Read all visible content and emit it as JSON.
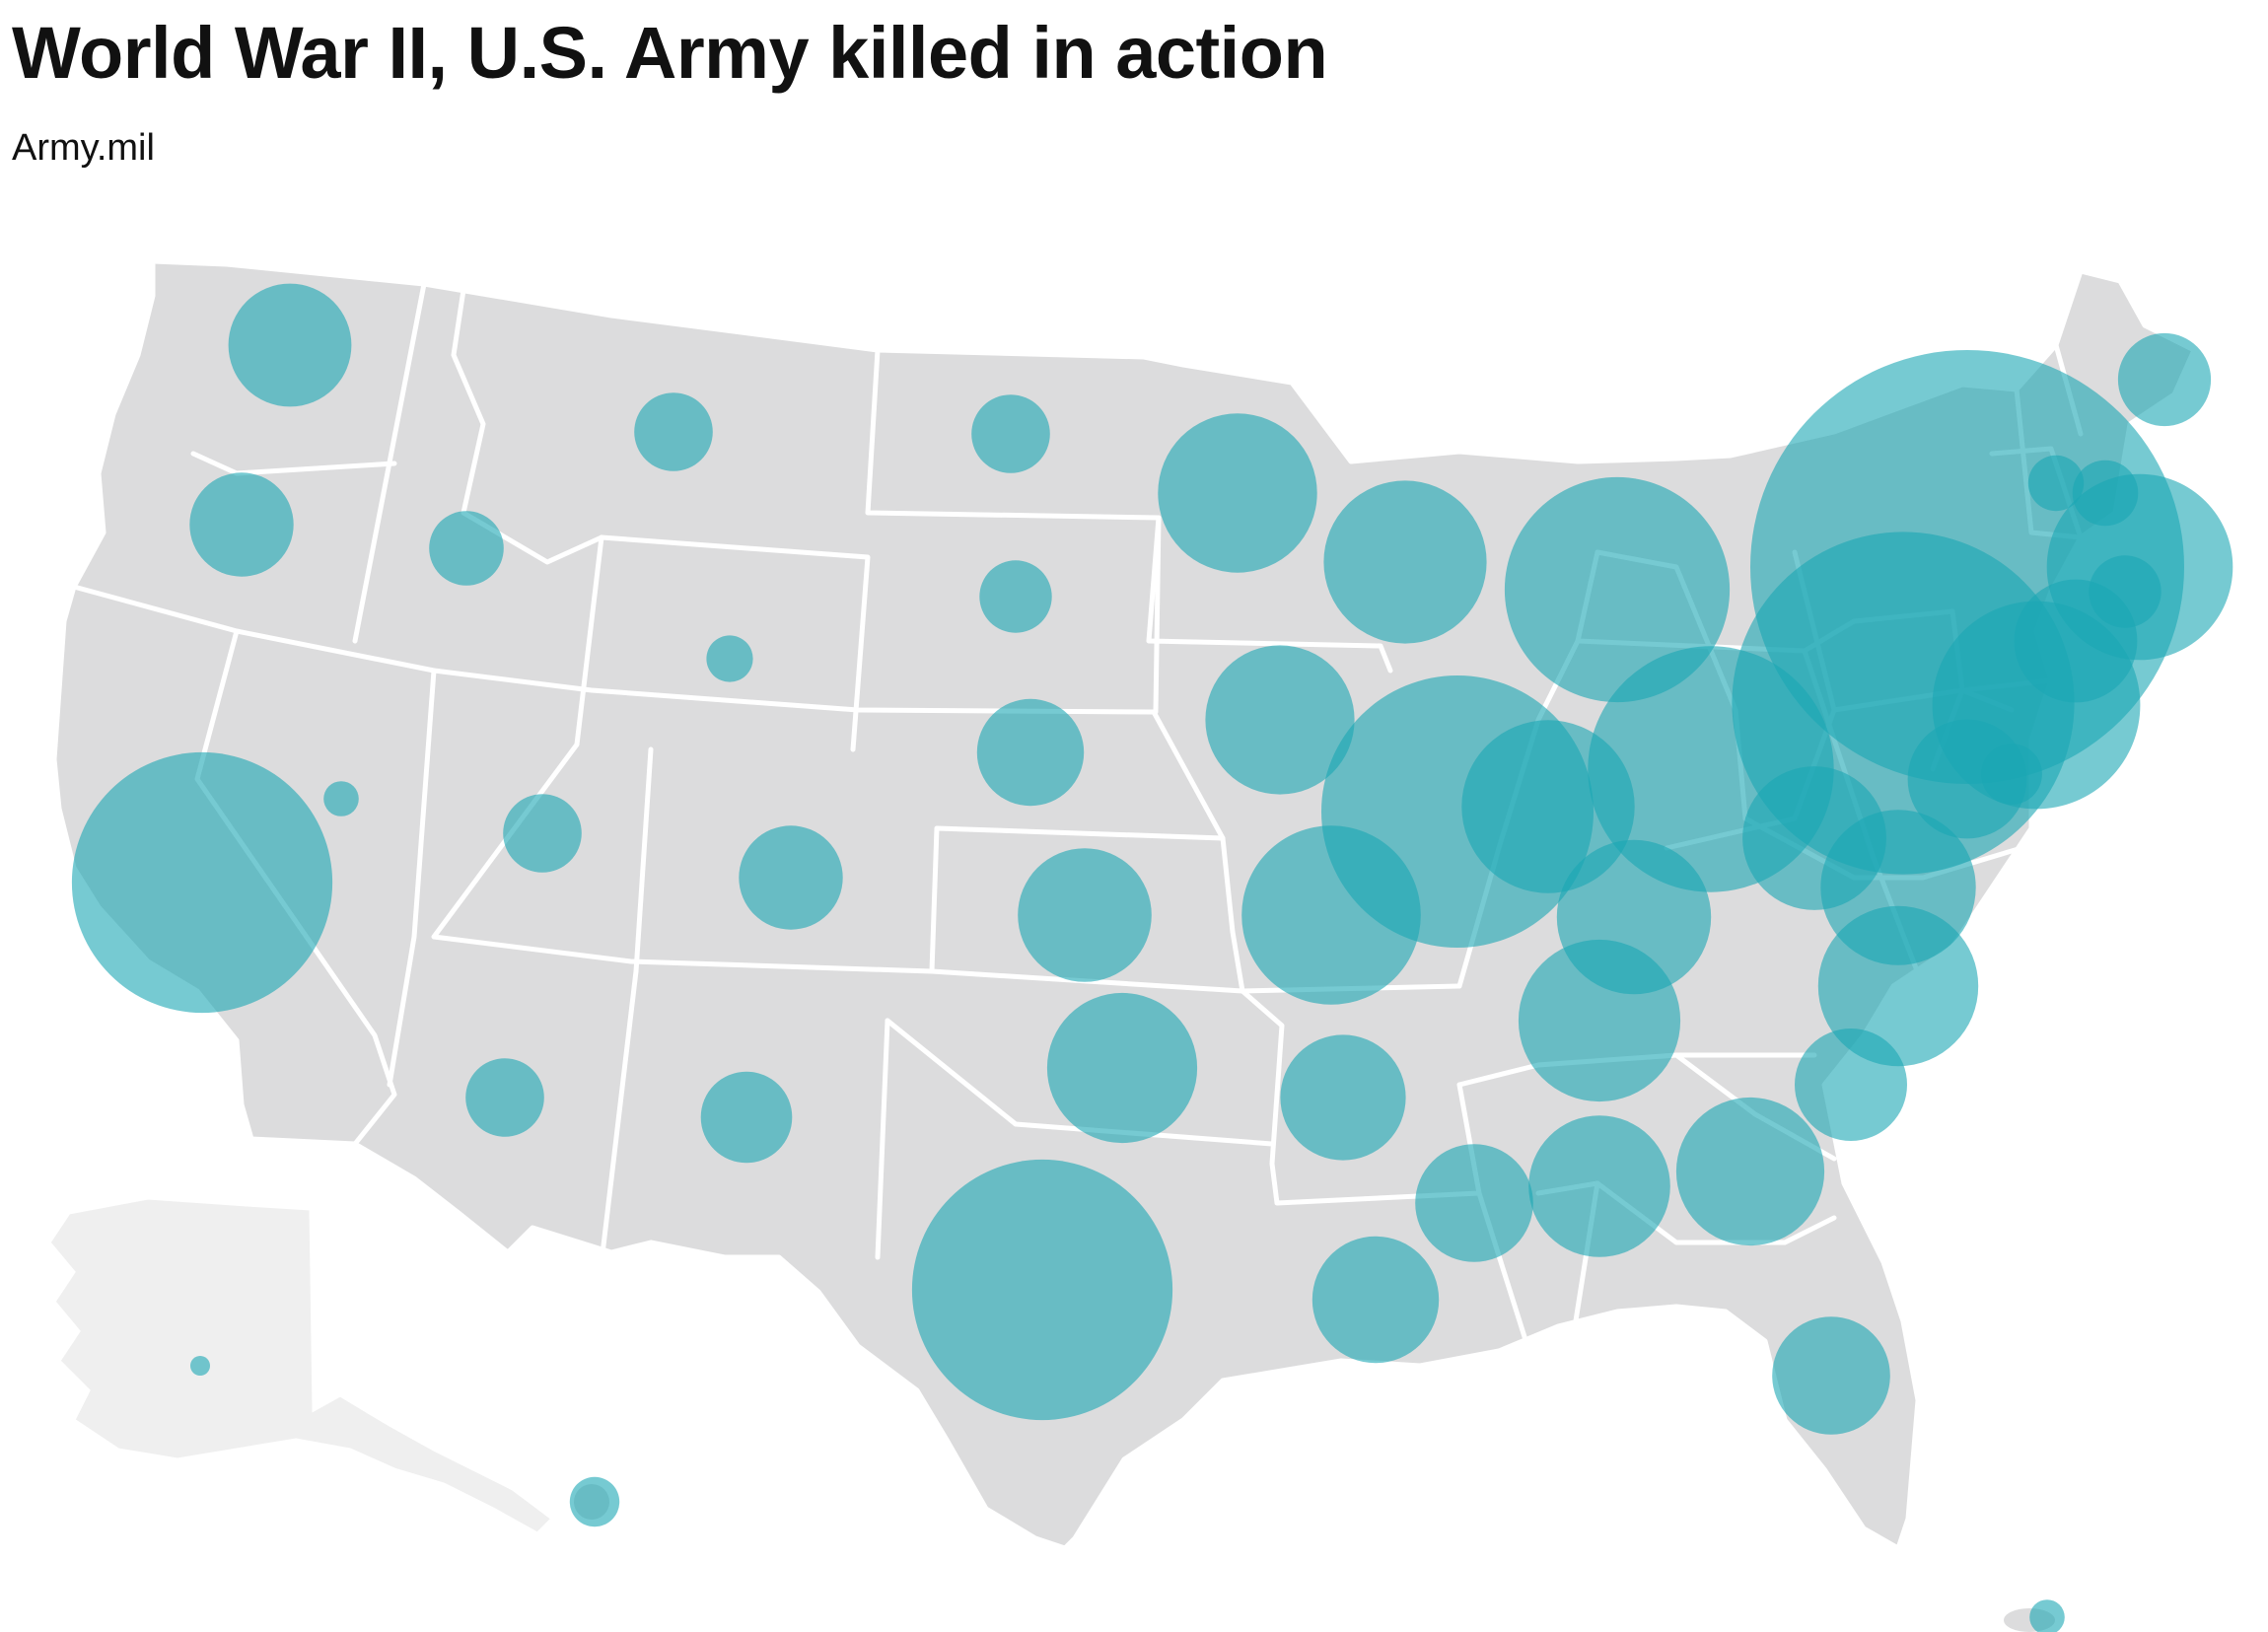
{
  "title": "World War II, U.S. Army killed in action",
  "source": "Army.mil",
  "colors": {
    "land": "#dcdcdd",
    "alaska_land": "#efefef",
    "borders": "#ffffff",
    "bubble": "#1aa7b4",
    "bubble_opacity": 0.6,
    "text": "#111111"
  },
  "bubbles": [
    {
      "state": "Washington",
      "value": 0.49
    },
    {
      "state": "Oregon",
      "value": 0.35
    },
    {
      "state": "Idaho",
      "value": 0.18
    },
    {
      "state": "Montana",
      "value": 0.2
    },
    {
      "state": "North Dakota",
      "value": 0.2
    },
    {
      "state": "South Dakota",
      "value": 0.17
    },
    {
      "state": "Minnesota",
      "value": 0.82
    },
    {
      "state": "Wisconsin",
      "value": 0.86
    },
    {
      "state": "Michigan",
      "value": 1.64
    },
    {
      "state": "Maine",
      "value": 0.28
    },
    {
      "state": "New York",
      "value": 6.1
    },
    {
      "state": "Vermont",
      "value": 0.1
    },
    {
      "state": "New Hampshire",
      "value": 0.14
    },
    {
      "state": "Massachusetts",
      "value": 1.12
    },
    {
      "state": "Rhode Island",
      "value": 0.17
    },
    {
      "state": "Connecticut",
      "value": 0.49
    },
    {
      "state": "Wyoming",
      "value": 0.07
    },
    {
      "state": "Nevada",
      "value": 0.04
    },
    {
      "state": "California",
      "value": 2.2
    },
    {
      "state": "Utah",
      "value": 0.2
    },
    {
      "state": "Colorado",
      "value": 0.35
    },
    {
      "state": "Nebraska",
      "value": 0.37
    },
    {
      "state": "Iowa",
      "value": 0.72
    },
    {
      "state": "Illinois",
      "value": 2.4
    },
    {
      "state": "Indiana",
      "value": 0.97
    },
    {
      "state": "Ohio",
      "value": 1.96
    },
    {
      "state": "Pennsylvania",
      "value": 3.8
    },
    {
      "state": "New Jersey",
      "value": 1.4
    },
    {
      "state": "Delaware",
      "value": 0.12
    },
    {
      "state": "Maryland",
      "value": 0.46
    },
    {
      "state": "Kansas",
      "value": 0.58
    },
    {
      "state": "Missouri",
      "value": 1.04
    },
    {
      "state": "Kentucky",
      "value": 0.77
    },
    {
      "state": "West Virginia",
      "value": 0.67
    },
    {
      "state": "Virginia",
      "value": 0.78
    },
    {
      "state": "Arizona",
      "value": 0.2
    },
    {
      "state": "New Mexico",
      "value": 0.27
    },
    {
      "state": "Oklahoma",
      "value": 0.73
    },
    {
      "state": "Arkansas",
      "value": 0.51
    },
    {
      "state": "Tennessee",
      "value": 0.85
    },
    {
      "state": "North Carolina",
      "value": 0.83
    },
    {
      "state": "South Carolina",
      "value": 0.41
    },
    {
      "state": "Texas",
      "value": 2.2
    },
    {
      "state": "Louisiana",
      "value": 0.52
    },
    {
      "state": "Mississippi",
      "value": 0.45
    },
    {
      "state": "Alabama",
      "value": 0.65
    },
    {
      "state": "Georgia",
      "value": 0.71
    },
    {
      "state": "Florida",
      "value": 0.45
    },
    {
      "state": "Alaska",
      "value": 0.01
    },
    {
      "state": "Hawaii",
      "value": 0.08
    },
    {
      "state": "Puerto Rico",
      "value": 0.04
    }
  ]
}
